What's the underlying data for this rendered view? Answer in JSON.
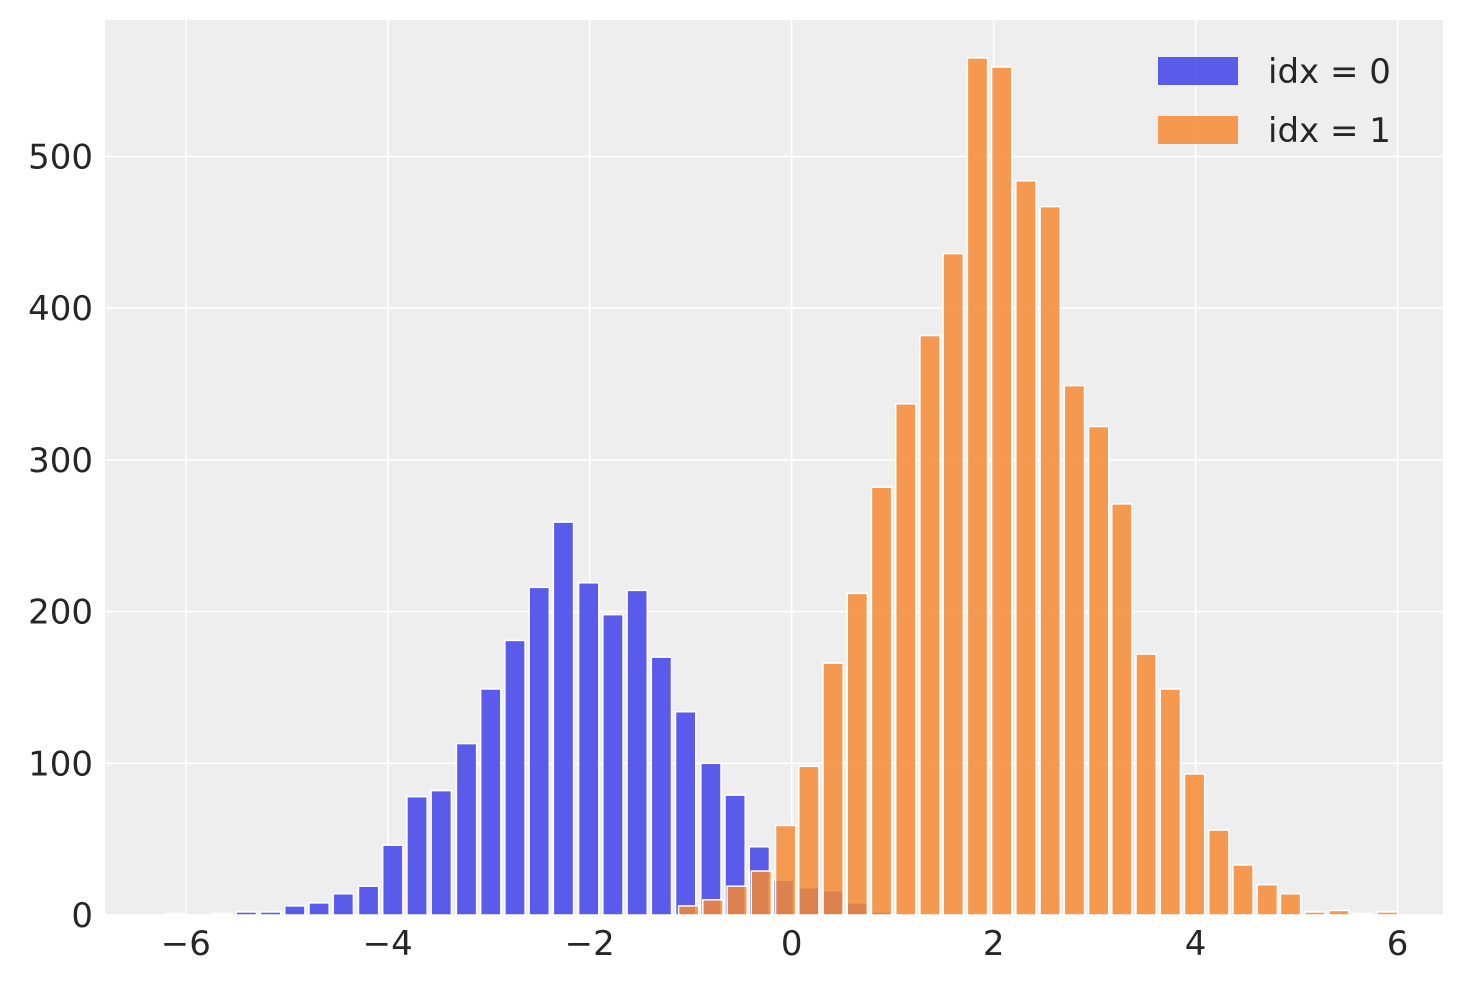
{
  "chart_data": {
    "type": "bar",
    "title": "",
    "xlabel": "",
    "ylabel": "",
    "xlim": [
      -6.8,
      6.45
    ],
    "ylim": [
      0,
      590
    ],
    "grid": true,
    "legend_position": "top-right",
    "bar_width": 0.2,
    "x_ticks": [
      {
        "value": -6,
        "label": "−6"
      },
      {
        "value": -4,
        "label": "−4"
      },
      {
        "value": -2,
        "label": "−2"
      },
      {
        "value": 0,
        "label": "0"
      },
      {
        "value": 2,
        "label": "2"
      },
      {
        "value": 4,
        "label": "4"
      },
      {
        "value": 6,
        "label": "6"
      }
    ],
    "y_ticks": [
      {
        "value": 0,
        "label": "0"
      },
      {
        "value": 100,
        "label": "100"
      },
      {
        "value": 200,
        "label": "200"
      },
      {
        "value": 300,
        "label": "300"
      },
      {
        "value": 400,
        "label": "400"
      },
      {
        "value": 500,
        "label": "500"
      }
    ],
    "series": [
      {
        "name": "idx = 0",
        "color": "#4A4AEA",
        "opacity": 0.9,
        "bins": [
          {
            "x": -6.1,
            "count": 1
          },
          {
            "x": -5.64,
            "count": 1
          },
          {
            "x": -5.4,
            "count": 2
          },
          {
            "x": -5.16,
            "count": 2
          },
          {
            "x": -4.92,
            "count": 6
          },
          {
            "x": -4.68,
            "count": 8
          },
          {
            "x": -4.44,
            "count": 14
          },
          {
            "x": -4.19,
            "count": 19
          },
          {
            "x": -3.95,
            "count": 46
          },
          {
            "x": -3.71,
            "count": 78
          },
          {
            "x": -3.47,
            "count": 82
          },
          {
            "x": -3.22,
            "count": 113
          },
          {
            "x": -2.98,
            "count": 149
          },
          {
            "x": -2.74,
            "count": 181
          },
          {
            "x": -2.5,
            "count": 216
          },
          {
            "x": -2.26,
            "count": 259
          },
          {
            "x": -2.01,
            "count": 219
          },
          {
            "x": -1.77,
            "count": 198
          },
          {
            "x": -1.53,
            "count": 214
          },
          {
            "x": -1.29,
            "count": 170
          },
          {
            "x": -1.05,
            "count": 134
          },
          {
            "x": -0.8,
            "count": 100
          },
          {
            "x": -0.56,
            "count": 79
          },
          {
            "x": -0.32,
            "count": 45
          },
          {
            "x": -0.08,
            "count": 23
          },
          {
            "x": 0.17,
            "count": 18
          },
          {
            "x": 0.41,
            "count": 16
          },
          {
            "x": 0.65,
            "count": 8
          },
          {
            "x": 0.89,
            "count": 2
          }
        ]
      },
      {
        "name": "idx = 1",
        "color": "#F58A33",
        "opacity": 0.85,
        "bins": [
          {
            "x": -1.02,
            "count": 6
          },
          {
            "x": -0.78,
            "count": 10
          },
          {
            "x": -0.54,
            "count": 19
          },
          {
            "x": -0.3,
            "count": 29
          },
          {
            "x": -0.06,
            "count": 59
          },
          {
            "x": 0.17,
            "count": 98
          },
          {
            "x": 0.41,
            "count": 166
          },
          {
            "x": 0.65,
            "count": 212
          },
          {
            "x": 0.89,
            "count": 282
          },
          {
            "x": 1.13,
            "count": 337
          },
          {
            "x": 1.37,
            "count": 382
          },
          {
            "x": 1.6,
            "count": 436
          },
          {
            "x": 1.84,
            "count": 565
          },
          {
            "x": 2.08,
            "count": 559
          },
          {
            "x": 2.32,
            "count": 484
          },
          {
            "x": 2.56,
            "count": 467
          },
          {
            "x": 2.8,
            "count": 349
          },
          {
            "x": 3.04,
            "count": 322
          },
          {
            "x": 3.27,
            "count": 271
          },
          {
            "x": 3.51,
            "count": 172
          },
          {
            "x": 3.75,
            "count": 149
          },
          {
            "x": 3.99,
            "count": 93
          },
          {
            "x": 4.23,
            "count": 56
          },
          {
            "x": 4.47,
            "count": 33
          },
          {
            "x": 4.71,
            "count": 20
          },
          {
            "x": 4.94,
            "count": 14
          },
          {
            "x": 5.18,
            "count": 2
          },
          {
            "x": 5.42,
            "count": 3
          },
          {
            "x": 5.66,
            "count": 1
          },
          {
            "x": 5.9,
            "count": 2
          }
        ]
      }
    ]
  }
}
